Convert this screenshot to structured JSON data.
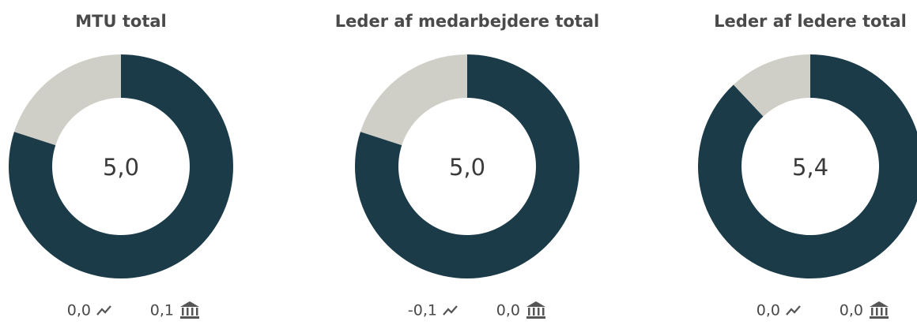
{
  "chart_data": [
    {
      "type": "donut",
      "title": "MTU total",
      "value": 5.0,
      "value_label": "5,0",
      "ylim": [
        1,
        6
      ],
      "colors": [
        "#1b3b48",
        "#cfcfc7"
      ],
      "trend_label": "0,0",
      "benchmark_label": "0,1"
    },
    {
      "type": "donut",
      "title": "Leder af medarbejdere total",
      "value": 5.0,
      "value_label": "5,0",
      "ylim": [
        1,
        6
      ],
      "colors": [
        "#1b3b48",
        "#cfcfc7"
      ],
      "trend_label": "-0,1",
      "benchmark_label": "0,0"
    },
    {
      "type": "donut",
      "title": "Leder af ledere total",
      "value": 5.4,
      "value_label": "5,4",
      "ylim": [
        1,
        6
      ],
      "colors": [
        "#1b3b48",
        "#cfcfc7"
      ],
      "trend_label": "0,0",
      "benchmark_label": "0,0"
    }
  ]
}
